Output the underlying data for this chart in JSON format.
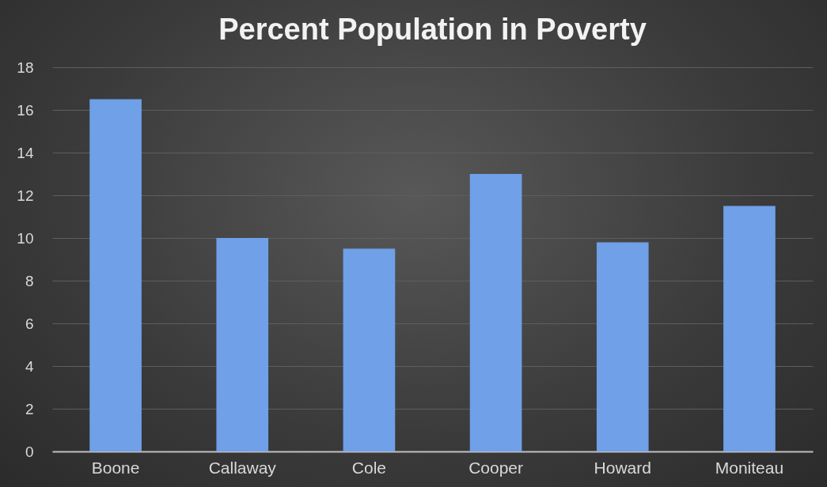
{
  "chart_data": {
    "type": "bar",
    "title": "Percent Population in Poverty",
    "categories": [
      "Boone",
      "Callaway",
      "Cole",
      "Cooper",
      "Howard",
      "Moniteau"
    ],
    "values": [
      16.5,
      10.0,
      9.5,
      13.0,
      9.8,
      11.5
    ],
    "color": "#6fa0e8",
    "ylim": [
      0,
      18
    ],
    "yticks": [
      0,
      2,
      4,
      6,
      8,
      10,
      12,
      14,
      16,
      18
    ],
    "grid": "y"
  }
}
